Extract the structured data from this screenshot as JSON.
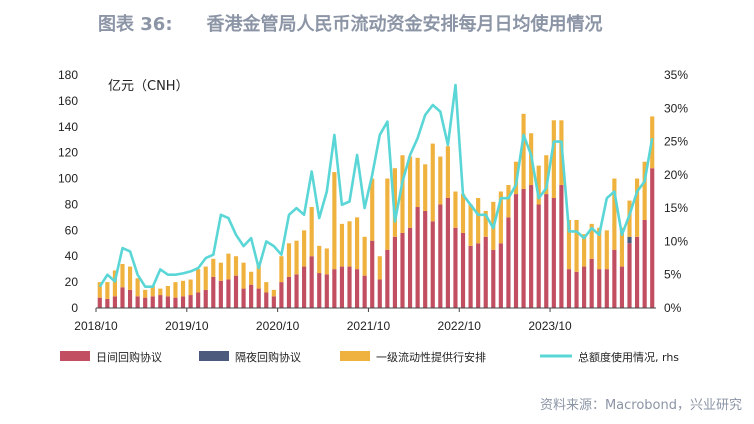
{
  "figure": {
    "number": "图表 36:",
    "title": "香港金管局人民币流动资金安排每月日均使用情况",
    "source": "资料来源：Macrobond，兴业研究"
  },
  "colors": {
    "title": "#8c95a6",
    "intraday": "#c24e62",
    "overnight": "#4c5a7d",
    "tier1": "#f0b23e",
    "line": "#5bd6d6"
  },
  "chart_data": {
    "type": "bar",
    "stacked": true,
    "unit_label": "亿元（CNH）",
    "x_tick_labels": [
      "2018/10",
      "2019/10",
      "2020/10",
      "2021/10",
      "2022/10",
      "2023/10"
    ],
    "y_left": {
      "min": 0,
      "max": 180,
      "ticks": [
        0,
        20,
        40,
        60,
        80,
        100,
        120,
        140,
        160,
        180
      ]
    },
    "y_right": {
      "min": 0,
      "max": 0.35,
      "ticks": [
        "0%",
        "5%",
        "10%",
        "15%",
        "20%",
        "25%",
        "30%",
        "35%"
      ]
    },
    "legend_position": "bottom",
    "series": [
      {
        "name": "日间回购协议",
        "kind": "bar",
        "axis": "left",
        "values": [
          8,
          7,
          9,
          16,
          14,
          9,
          8,
          9,
          10,
          9,
          8,
          9,
          10,
          12,
          14,
          24,
          21,
          22,
          25,
          15,
          18,
          15,
          12,
          9,
          20,
          24,
          26,
          32,
          40,
          27,
          26,
          30,
          32,
          32,
          30,
          25,
          52,
          22,
          45,
          55,
          58,
          62,
          78,
          75,
          67,
          80,
          85,
          62,
          58,
          48,
          50,
          55,
          45,
          50,
          70,
          88,
          92,
          95,
          80,
          88,
          85,
          95,
          30,
          28,
          32,
          38,
          30,
          30,
          45,
          32,
          50,
          55,
          68,
          108
        ]
      },
      {
        "name": "隔夜回购协议",
        "kind": "bar",
        "axis": "left",
        "values": [
          0,
          0,
          0,
          0,
          0,
          0,
          0,
          0,
          0,
          0,
          0,
          0,
          0,
          0,
          0,
          0,
          0,
          0,
          0,
          0,
          0,
          0,
          0,
          0,
          0,
          0,
          0,
          0,
          0,
          0,
          0,
          0,
          0,
          0,
          0,
          0,
          0,
          0,
          0,
          0,
          0,
          0,
          0,
          0,
          0,
          0,
          0,
          0,
          0,
          0,
          0,
          0,
          0,
          0,
          0,
          0,
          0,
          0,
          0,
          0,
          0,
          0,
          0,
          0,
          0,
          0,
          0,
          0,
          0,
          0,
          5,
          0,
          0,
          0
        ]
      },
      {
        "name": "一级流动性提供行安排",
        "kind": "bar",
        "axis": "left",
        "values": [
          12,
          13,
          20,
          18,
          18,
          14,
          6,
          8,
          5,
          8,
          12,
          12,
          12,
          18,
          18,
          14,
          14,
          20,
          15,
          20,
          10,
          20,
          8,
          5,
          20,
          26,
          26,
          28,
          38,
          21,
          20,
          75,
          33,
          35,
          40,
          30,
          48,
          18,
          55,
          53,
          60,
          55,
          38,
          36,
          60,
          37,
          40,
          28,
          30,
          32,
          35,
          20,
          37,
          40,
          25,
          25,
          58,
          40,
          30,
          30,
          60,
          50,
          38,
          40,
          25,
          27,
          32,
          30,
          55,
          30,
          28,
          45,
          45,
          40
        ]
      },
      {
        "name": "总额度使用情况, rhs",
        "kind": "line",
        "axis": "right",
        "values": [
          0.032,
          0.05,
          0.04,
          0.09,
          0.085,
          0.05,
          0.032,
          0.032,
          0.058,
          0.05,
          0.05,
          0.052,
          0.055,
          0.06,
          0.075,
          0.08,
          0.14,
          0.135,
          0.11,
          0.093,
          0.105,
          0.06,
          0.1,
          0.093,
          0.08,
          0.14,
          0.15,
          0.14,
          0.205,
          0.135,
          0.175,
          0.26,
          0.155,
          0.16,
          0.23,
          0.15,
          0.2,
          0.26,
          0.28,
          0.13,
          0.19,
          0.23,
          0.255,
          0.29,
          0.305,
          0.295,
          0.245,
          0.335,
          0.17,
          0.155,
          0.14,
          0.14,
          0.12,
          0.165,
          0.165,
          0.185,
          0.26,
          0.23,
          0.165,
          0.18,
          0.25,
          0.25,
          0.115,
          0.115,
          0.105,
          0.12,
          0.11,
          0.165,
          0.175,
          0.11,
          0.14,
          0.175,
          0.19,
          0.255
        ]
      }
    ]
  },
  "legend_note": ""
}
